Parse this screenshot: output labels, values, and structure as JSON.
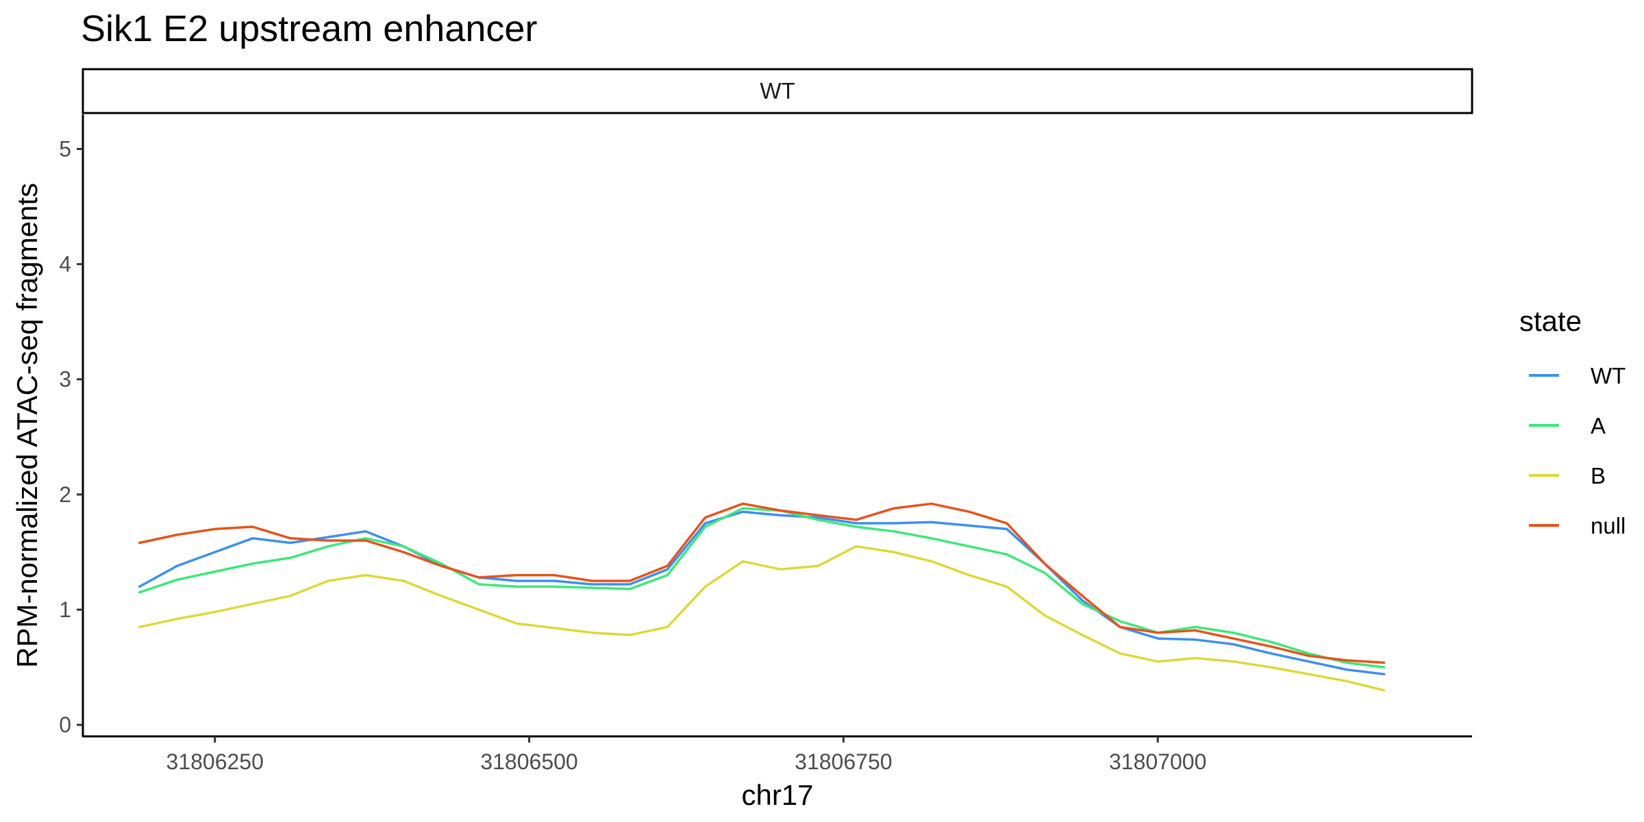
{
  "chart_data": {
    "type": "line",
    "title": "Sik1 E2 upstream enhancer",
    "facet": "WT",
    "xlabel": "chr17",
    "ylabel": "RPM-normalized ATAC-seq fragments",
    "xlim": [
      31806145,
      31807250
    ],
    "ylim": [
      -0.1,
      5.3
    ],
    "x_ticks": [
      31806250,
      31806500,
      31806750,
      31807000
    ],
    "y_ticks": [
      0,
      1,
      2,
      3,
      4,
      5
    ],
    "grid": false,
    "legend": {
      "title": "state",
      "position": "right"
    },
    "x": [
      31806190,
      31806220,
      31806250,
      31806280,
      31806310,
      31806340,
      31806370,
      31806400,
      31806430,
      31806460,
      31806490,
      31806520,
      31806550,
      31806580,
      31806610,
      31806640,
      31806670,
      31806700,
      31806730,
      31806760,
      31806790,
      31806820,
      31806850,
      31806880,
      31806910,
      31806940,
      31806970,
      31807000,
      31807030,
      31807060,
      31807090,
      31807120,
      31807150,
      31807180
    ],
    "series": [
      {
        "name": "WT",
        "color": "#3d8ff0",
        "values": [
          1.2,
          1.38,
          1.5,
          1.62,
          1.58,
          1.63,
          1.68,
          1.55,
          1.38,
          1.28,
          1.25,
          1.25,
          1.22,
          1.22,
          1.35,
          1.75,
          1.85,
          1.82,
          1.8,
          1.75,
          1.75,
          1.76,
          1.73,
          1.7,
          1.4,
          1.08,
          0.85,
          0.75,
          0.74,
          0.7,
          0.62,
          0.55,
          0.48,
          0.44
        ]
      },
      {
        "name": "A",
        "color": "#3ce87a",
        "values": [
          1.15,
          1.26,
          1.33,
          1.4,
          1.45,
          1.55,
          1.62,
          1.55,
          1.4,
          1.22,
          1.2,
          1.2,
          1.19,
          1.18,
          1.3,
          1.72,
          1.88,
          1.86,
          1.78,
          1.72,
          1.68,
          1.62,
          1.55,
          1.48,
          1.32,
          1.05,
          0.9,
          0.8,
          0.85,
          0.8,
          0.72,
          0.62,
          0.54,
          0.5
        ]
      },
      {
        "name": "B",
        "color": "#dcd83a",
        "values": [
          0.85,
          0.92,
          0.98,
          1.05,
          1.12,
          1.25,
          1.3,
          1.25,
          1.12,
          1.0,
          0.88,
          0.84,
          0.8,
          0.78,
          0.85,
          1.2,
          1.42,
          1.35,
          1.38,
          1.55,
          1.5,
          1.42,
          1.3,
          1.2,
          0.95,
          0.78,
          0.62,
          0.55,
          0.58,
          0.55,
          0.5,
          0.44,
          0.38,
          0.3
        ]
      },
      {
        "name": "null",
        "color": "#e8521a",
        "values": [
          1.58,
          1.65,
          1.7,
          1.72,
          1.62,
          1.6,
          1.6,
          1.5,
          1.38,
          1.28,
          1.3,
          1.3,
          1.25,
          1.25,
          1.38,
          1.8,
          1.92,
          1.86,
          1.82,
          1.78,
          1.88,
          1.92,
          1.85,
          1.75,
          1.4,
          1.12,
          0.85,
          0.8,
          0.82,
          0.75,
          0.68,
          0.6,
          0.56,
          0.54
        ]
      }
    ]
  }
}
